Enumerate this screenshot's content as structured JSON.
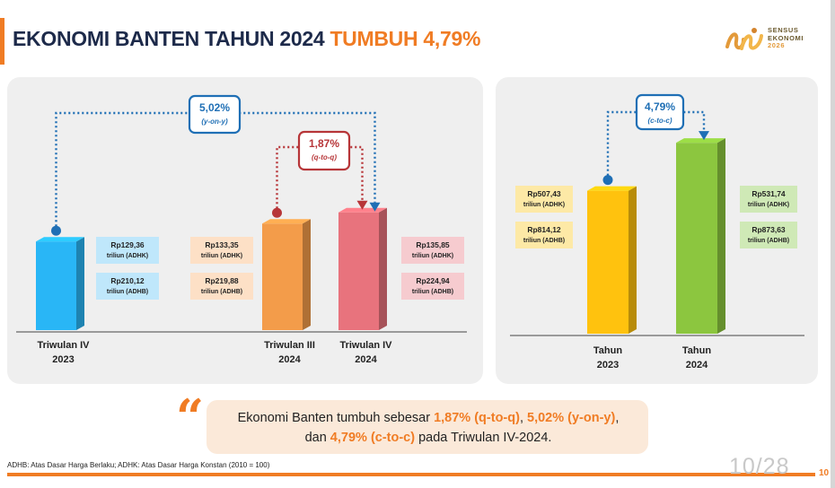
{
  "header": {
    "title_main": "EKONOMI BANTEN TAHUN 2024",
    "title_accent": "TUMBUH 4,79%",
    "logo_lines": [
      "SENSUS",
      "EKONOMI",
      "2026"
    ]
  },
  "colors": {
    "accent": "#f07c24",
    "navy": "#1d2a4a",
    "blue_connector": "#1f6fb5",
    "red_connector": "#b73538"
  },
  "chart_data": [
    {
      "type": "bar",
      "categories": [
        "Triwulan IV 2023",
        "Triwulan III 2024",
        "Triwulan IV 2024"
      ],
      "category_labels": [
        [
          "Triwulan IV",
          "2023"
        ],
        [
          "Triwulan III",
          "2024"
        ],
        [
          "Triwulan IV",
          "2024"
        ]
      ],
      "series": [
        {
          "name": "ADHK",
          "values": [
            129.36,
            133.35,
            135.85
          ]
        },
        {
          "name": "ADHB",
          "values": [
            210.12,
            219.88,
            224.94
          ]
        }
      ],
      "bar_basis": "ADHK",
      "bar_colors": [
        "#29b6f6",
        "#f39c4a",
        "#e8737d"
      ],
      "value_labels": [
        [
          "Rp129,36",
          "triliun (ADHK)",
          "Rp210,12",
          "triliun (ADHB)"
        ],
        [
          "Rp133,35",
          "triliun (ADHK)",
          "Rp219,88",
          "triliun (ADHB)"
        ],
        [
          "Rp135,85",
          "triliun (ADHK)",
          "Rp224,94",
          "triliun (ADHB)"
        ]
      ],
      "annotations": [
        {
          "from": 0,
          "to": 2,
          "value": "5,02%",
          "type": "(y-on-y)"
        },
        {
          "from": 1,
          "to": 2,
          "value": "1,87%",
          "type": "(q-to-q)"
        }
      ]
    },
    {
      "type": "bar",
      "categories": [
        "Tahun 2023",
        "Tahun 2024"
      ],
      "category_labels": [
        [
          "Tahun",
          "2023"
        ],
        [
          "Tahun",
          "2024"
        ]
      ],
      "series": [
        {
          "name": "ADHK",
          "values": [
            507.43,
            531.74
          ]
        },
        {
          "name": "ADHB",
          "values": [
            814.12,
            873.63
          ]
        }
      ],
      "bar_basis": "ADHK",
      "bar_colors": [
        "#ffc20e",
        "#8cc63f"
      ],
      "value_labels": [
        [
          "Rp507,43",
          "triliun (ADHK)",
          "Rp814,12",
          "triliun (ADHB)"
        ],
        [
          "Rp531,74",
          "triliun (ADHK)",
          "Rp873,63",
          "triliun (ADHB)"
        ]
      ],
      "annotations": [
        {
          "from": 0,
          "to": 1,
          "value": "4,79%",
          "type": "(c-to-c)"
        }
      ]
    }
  ],
  "quote": {
    "p1": "Ekonomi Banten tumbuh sebesar ",
    "h1": "1,87% (q-to-q)",
    "p2": ", ",
    "h2": "5,02% (y-on-y)",
    "p3": ",",
    "p4": "dan ",
    "h3": "4,79% (c-to-c)",
    "p5": " pada Triwulan IV-2024."
  },
  "footer": {
    "footnote": "ADHB: Atas Dasar Harga Berlaku; ADHK: Atas Dasar Harga Konstan (2010 = 100)",
    "page_watermark": "10/28",
    "page_number": "10"
  }
}
